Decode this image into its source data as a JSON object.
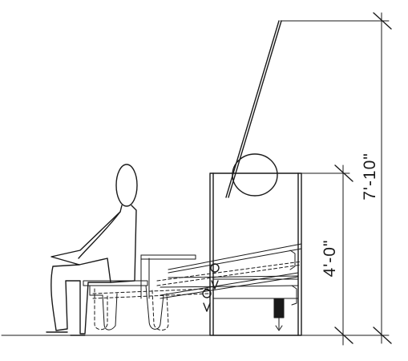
{
  "drawing": {
    "dimensions": {
      "overall_height": "7'-10\"",
      "unit_height": "4'-0\""
    }
  }
}
